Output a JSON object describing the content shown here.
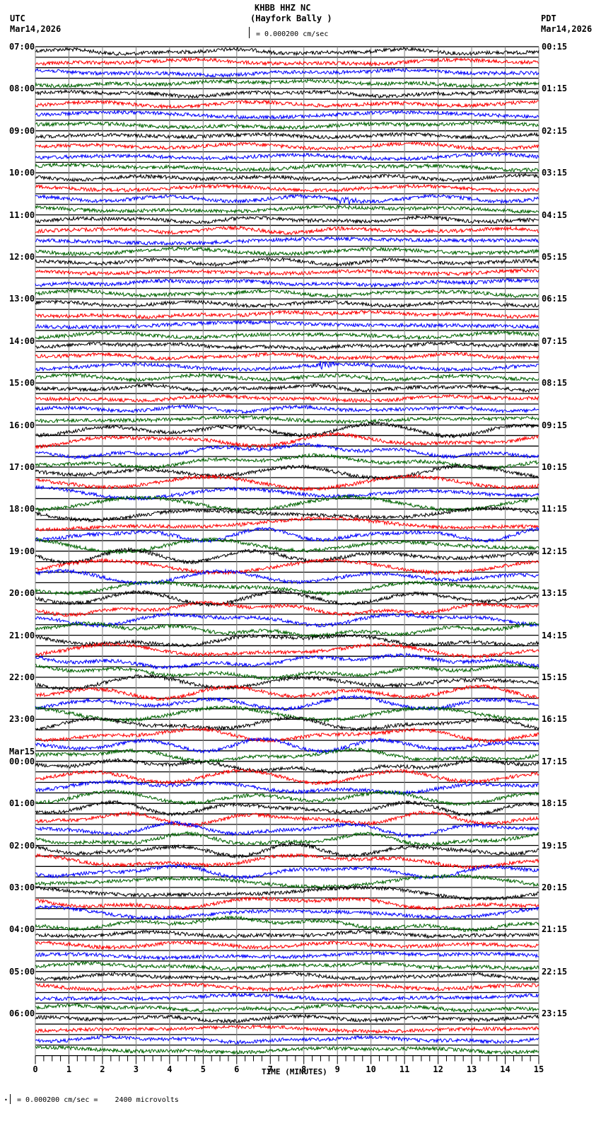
{
  "header": {
    "station": "KHBB HHZ NC",
    "location": "(Hayfork Bally )",
    "scale": "= 0.000200 cm/sec",
    "left_tz": "UTC",
    "left_date": "Mar14,2026",
    "right_tz": "PDT",
    "right_date": "Mar14,2026"
  },
  "footer": {
    "scale_note": "= 0.000200 cm/sec =    2400 microvolts",
    "xlabel": "TIME (MINUTES)"
  },
  "left_labels": [
    "07:00",
    "08:00",
    "09:00",
    "10:00",
    "11:00",
    "12:00",
    "13:00",
    "14:00",
    "15:00",
    "16:00",
    "17:00",
    "18:00",
    "19:00",
    "20:00",
    "21:00",
    "22:00",
    "23:00",
    "00:00",
    "01:00",
    "02:00",
    "03:00",
    "04:00",
    "05:00",
    "06:00"
  ],
  "date_change_label": "Mar15",
  "right_labels": [
    "00:15",
    "01:15",
    "02:15",
    "03:15",
    "04:15",
    "05:15",
    "06:15",
    "07:15",
    "08:15",
    "09:15",
    "10:15",
    "11:15",
    "12:15",
    "13:15",
    "14:15",
    "15:15",
    "16:15",
    "17:15",
    "18:15",
    "19:15",
    "20:15",
    "21:15",
    "22:15",
    "23:15"
  ],
  "colors": {
    "trace_cycle": [
      "#000000",
      "#ff0000",
      "#0000ff",
      "#006400"
    ],
    "grid": "#808080"
  },
  "chart_data": {
    "type": "line",
    "title": "KHBB HHZ NC (Hayfork Bally ) helicorder",
    "xlabel": "TIME (MINUTES)",
    "ylabel": "",
    "x_ticks": [
      0,
      1,
      2,
      3,
      4,
      5,
      6,
      7,
      8,
      9,
      10,
      11,
      12,
      13,
      14,
      15
    ],
    "xlim": [
      0,
      15
    ],
    "traces_per_hour": 4,
    "minutes_per_trace": 15,
    "hours": 24,
    "start_utc": "Mar14,2026 07:00",
    "start_pdt": "Mar14,2026 00:15",
    "scale": "0.000200 cm/sec = 2400 microvolts",
    "events": [
      {
        "utc": "10:30",
        "minute": 9.2,
        "note": "small burst on blue trace"
      },
      {
        "utc": "14:30",
        "minute": 8.6,
        "note": "small burst on blue trace"
      }
    ],
    "grid": true
  }
}
